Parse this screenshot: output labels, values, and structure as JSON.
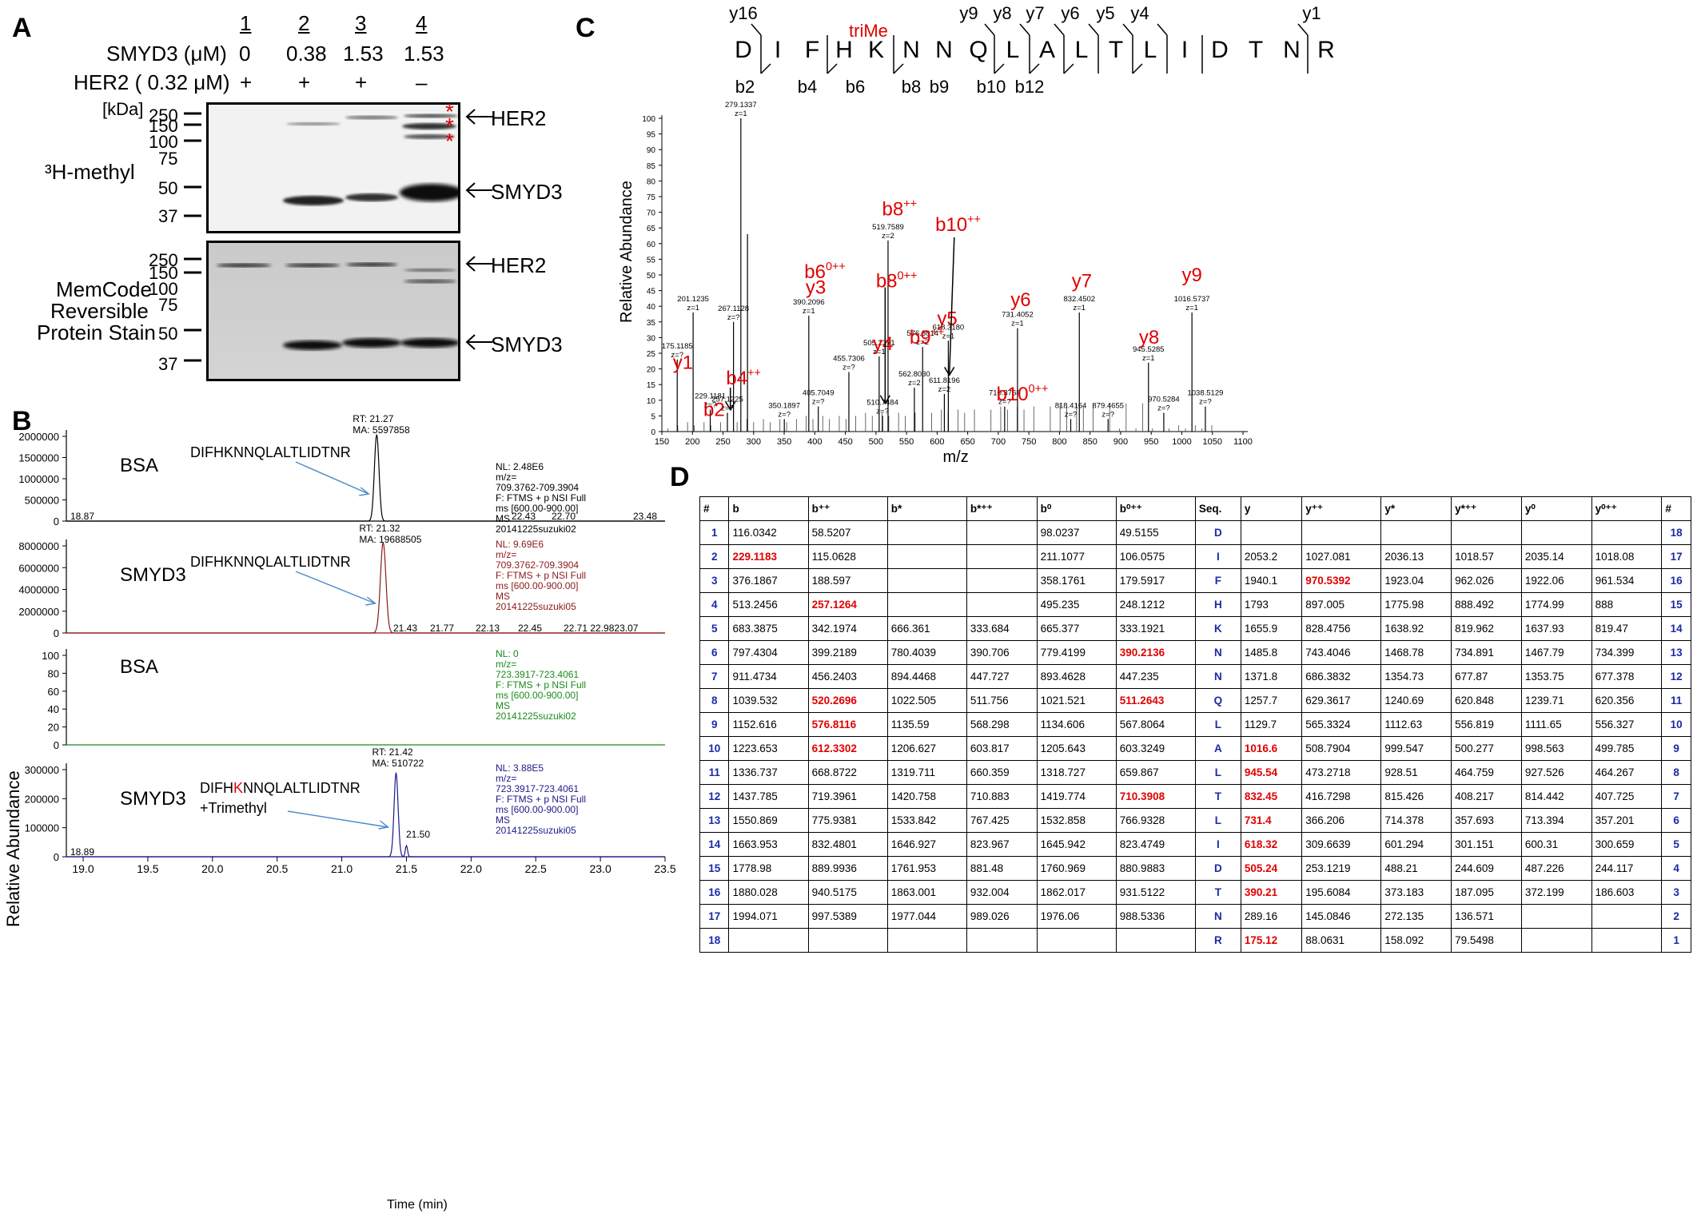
{
  "panelA": {
    "letter": "A",
    "lanes": [
      "1",
      "2",
      "3",
      "4"
    ],
    "smyd3_label": "SMYD3 (μM)",
    "smyd3_values": [
      "0",
      "0.38",
      "1.53",
      "1.53"
    ],
    "her2_label": "HER2 ( 0.32 μM)",
    "her2_values": [
      "+",
      "+",
      "+",
      "–"
    ],
    "kda_label": "[kDa]",
    "top_markers": [
      "250",
      "150",
      "100",
      "75",
      "50",
      "37"
    ],
    "bottom_markers": [
      "250",
      "150",
      "100",
      "75",
      "50",
      "37"
    ],
    "top_side_label": "³H-methyl",
    "bottom_side_label": [
      "MemCode",
      "Reversible",
      "Protein Stain"
    ],
    "her2_arrow": "HER2",
    "smyd3_arrow": "SMYD3",
    "asterisk": "*"
  },
  "panelB": {
    "letter": "B",
    "ylabel": "Relative Abundance",
    "xlabel": "Time (min)",
    "x_ticks": [
      "19.0",
      "19.5",
      "20.0",
      "20.5",
      "21.0",
      "21.5",
      "22.0",
      "22.5",
      "23.0",
      "23.5"
    ],
    "traces": [
      {
        "sample": "BSA",
        "peptide": "DIFHKNNQLALTLIDTNR",
        "rt": "RT: 21.27",
        "ma": "MA: 5597858",
        "info": [
          "NL: 2.48E6",
          "m/z=",
          "709.3762-709.3904",
          "F: FTMS + p NSI Full",
          "ms [600.00-900.00]",
          "MS",
          "20141225suzuki02"
        ],
        "yticks": [
          "2000000",
          "1500000",
          "1000000",
          "500000",
          "0"
        ],
        "annotations": [
          "18.87",
          "22.43",
          "22.70",
          "23.48"
        ],
        "color": "#000000"
      },
      {
        "sample": "SMYD3",
        "peptide": "DIFHKNNQLALTLIDTNR",
        "rt": "RT: 21.32",
        "ma": "MA: 19688505",
        "info": [
          "NL: 9.69E6",
          "m/z=",
          "709.3762-709.3904",
          "F: FTMS + p NSI Full",
          "ms [600.00-900.00]",
          "MS",
          "20141225suzuki05"
        ],
        "yticks": [
          "8000000",
          "6000000",
          "4000000",
          "2000000",
          "0"
        ],
        "annotations": [
          "21.43",
          "21.77",
          "22.13",
          "22.45",
          "22.71 22.9823.07"
        ],
        "color": "#8b1a1a"
      },
      {
        "sample": "BSA",
        "peptide": "",
        "rt": "",
        "ma": "",
        "info": [
          "NL: 0",
          "m/z=",
          "723.3917-723.4061",
          "F: FTMS + p NSI Full",
          "ms [600.00-900.00]",
          "MS",
          "20141225suzuki02"
        ],
        "yticks": [
          "100",
          "80",
          "60",
          "40",
          "20",
          "0"
        ],
        "annotations": [],
        "color": "#1a8a1a"
      },
      {
        "sample": "SMYD3",
        "peptide_pre": "DIFH",
        "peptide_k": "K",
        "peptide_post": "NNQLALTLIDTNR",
        "peptide_mod": "+Trimethyl",
        "rt": "RT: 21.42",
        "ma": "MA: 510722",
        "info": [
          "NL: 3.88E5",
          "m/z=",
          "723.3917-723.4061",
          "F: FTMS + p NSI Full",
          "ms [600.00-900.00]",
          "MS",
          "20141225suzuki05"
        ],
        "yticks": [
          "300000",
          "200000",
          "100000",
          "0"
        ],
        "annotations": [
          "18.89",
          "21.50"
        ],
        "color": "#1a1a8a"
      }
    ]
  },
  "panelC": {
    "letter": "C",
    "sequence": [
      "D",
      "I",
      "F",
      "H",
      "K",
      "N",
      "N",
      "Q",
      "L",
      "A",
      "L",
      "T",
      "L",
      "I",
      "D",
      "T",
      "N",
      "R"
    ],
    "mod_label": "triMe",
    "y_top": [
      "y16",
      "y9",
      "y8",
      "y7",
      "y6",
      "y5",
      "y4",
      "y1"
    ],
    "b_bottom": [
      "b2",
      "b4",
      "b6",
      "b8",
      "b9",
      "b10",
      "b12"
    ],
    "ylabel": "Relative Abundance",
    "xlabel": "m/z",
    "x_ticks": [
      "150",
      "200",
      "250",
      "300",
      "350",
      "400",
      "450",
      "500",
      "550",
      "600",
      "650",
      "700",
      "750",
      "800",
      "850",
      "900",
      "950",
      "1000",
      "1050",
      "1100"
    ],
    "y_ticks": [
      "0",
      "5",
      "10",
      "15",
      "20",
      "25",
      "30",
      "35",
      "40",
      "45",
      "50",
      "55",
      "60",
      "65",
      "70",
      "75",
      "80",
      "85",
      "90",
      "95",
      "100"
    ],
    "chart_data": {
      "type": "bar",
      "xlabel": "m/z",
      "ylabel": "Relative Abundance",
      "xlim": [
        150,
        1100
      ],
      "ylim": [
        0,
        100
      ],
      "peaks": [
        {
          "mz": 175.1185,
          "intensity": 23,
          "label": "175.1185",
          "z": "z=?",
          "ion": "y1"
        },
        {
          "mz": 201.1235,
          "intensity": 38,
          "label": "201.1235",
          "z": "z=1",
          "ion": ""
        },
        {
          "mz": 229.1181,
          "intensity": 7,
          "label": "229.1181",
          "z": "z=?",
          "ion": "b2"
        },
        {
          "mz": 257.1225,
          "intensity": 6,
          "label": "257.1225",
          "z": "z=?",
          "ion": "b4++"
        },
        {
          "mz": 267.1128,
          "intensity": 35,
          "label": "267.1128",
          "z": "z=?",
          "ion": ""
        },
        {
          "mz": 279.1337,
          "intensity": 100,
          "label": "279.1337",
          "z": "z=1",
          "ion": ""
        },
        {
          "mz": 290.0,
          "intensity": 63,
          "label": "",
          "z": "",
          "ion": ""
        },
        {
          "mz": 350.1897,
          "intensity": 4,
          "label": "350.1897",
          "z": "z=?",
          "ion": ""
        },
        {
          "mz": 390.2096,
          "intensity": 37,
          "label": "390.2096",
          "z": "z=1",
          "ion": "y3"
        },
        {
          "mz": 405.7049,
          "intensity": 8,
          "label": "405.7049",
          "z": "z=?",
          "ion": ""
        },
        {
          "mz": 455.7306,
          "intensity": 19,
          "label": "455.7306",
          "z": "z=?",
          "ion": ""
        },
        {
          "mz": 505.2371,
          "intensity": 24,
          "label": "505.2371",
          "z": "z=1",
          "ion": "y4"
        },
        {
          "mz": 510.7484,
          "intensity": 5,
          "label": "510.7484",
          "z": "z=?",
          "ion": "b8⁰⁺⁺"
        },
        {
          "mz": 519.7589,
          "intensity": 61,
          "label": "519.7589",
          "z": "z=2",
          "ion": "b8++"
        },
        {
          "mz": 562.803,
          "intensity": 14,
          "label": "562.8030",
          "z": "z=2",
          "ion": ""
        },
        {
          "mz": 576.3014,
          "intensity": 27,
          "label": "576.3014",
          "z": "z=2",
          "ion": "b9++"
        },
        {
          "mz": 611.8196,
          "intensity": 12,
          "label": "611.8196",
          "z": "z=2",
          "ion": "b10++"
        },
        {
          "mz": 618.318,
          "intensity": 29,
          "label": "618.3180",
          "z": "z=1",
          "ion": "y5"
        },
        {
          "mz": 710.3768,
          "intensity": 8,
          "label": "710.3768",
          "z": "z=?",
          "ion": "b10⁰⁺⁺"
        },
        {
          "mz": 731.4052,
          "intensity": 33,
          "label": "731.4052",
          "z": "z=1",
          "ion": "y6"
        },
        {
          "mz": 818.4164,
          "intensity": 4,
          "label": "818.4164",
          "z": "z=?",
          "ion": ""
        },
        {
          "mz": 832.4502,
          "intensity": 38,
          "label": "832.4502",
          "z": "z=1",
          "ion": "y7"
        },
        {
          "mz": 879.4655,
          "intensity": 4,
          "label": "879.4655",
          "z": "z=?",
          "ion": ""
        },
        {
          "mz": 945.5285,
          "intensity": 22,
          "label": "945.5285",
          "z": "z=1",
          "ion": "y8"
        },
        {
          "mz": 970.5284,
          "intensity": 6,
          "label": "970.5284",
          "z": "z=?",
          "ion": ""
        },
        {
          "mz": 1016.5737,
          "intensity": 38,
          "label": "1016.5737",
          "z": "z=1",
          "ion": "y9"
        },
        {
          "mz": 1038.5129,
          "intensity": 8,
          "label": "1038.5129",
          "z": "z=?",
          "ion": ""
        }
      ]
    },
    "ion_labels": {
      "y1": "y1",
      "b2": "b2",
      "b4": "b4",
      "b6": "b6",
      "y3": "y3",
      "y4": "y4",
      "b8a": "b8",
      "b8b": "b8",
      "b9": "b9",
      "b10a": "b10",
      "b10b": "b10",
      "y5": "y5",
      "y6": "y6",
      "y7": "y7",
      "y8": "y8",
      "y9": "y9",
      "pp": "++",
      "zpp": "0++"
    }
  },
  "panelD": {
    "letter": "D",
    "headers": [
      "#",
      "b",
      "b⁺⁺",
      "b*",
      "b*⁺⁺",
      "b⁰",
      "b⁰⁺⁺",
      "Seq.",
      "y",
      "y⁺⁺",
      "y*",
      "y*⁺⁺",
      "y⁰",
      "y⁰⁺⁺",
      "#"
    ],
    "rows": [
      [
        "1",
        "116.0342",
        "58.5207",
        "",
        "",
        "98.0237",
        "49.5155",
        "D",
        "",
        "",
        "",
        "",
        "",
        "",
        "18"
      ],
      [
        "2",
        "229.1183",
        "115.0628",
        "",
        "",
        "211.1077",
        "106.0575",
        "I",
        "2053.2",
        "1027.081",
        "2036.13",
        "1018.57",
        "2035.14",
        "1018.08",
        "17"
      ],
      [
        "3",
        "376.1867",
        "188.597",
        "",
        "",
        "358.1761",
        "179.5917",
        "F",
        "1940.1",
        "970.5392",
        "1923.04",
        "962.026",
        "1922.06",
        "961.534",
        "16"
      ],
      [
        "4",
        "513.2456",
        "257.1264",
        "",
        "",
        "495.235",
        "248.1212",
        "H",
        "1793",
        "897.005",
        "1775.98",
        "888.492",
        "1774.99",
        "888",
        "15"
      ],
      [
        "5",
        "683.3875",
        "342.1974",
        "666.361",
        "333.684",
        "665.377",
        "333.1921",
        "K",
        "1655.9",
        "828.4756",
        "1638.92",
        "819.962",
        "1637.93",
        "819.47",
        "14"
      ],
      [
        "6",
        "797.4304",
        "399.2189",
        "780.4039",
        "390.706",
        "779.4199",
        "390.2136",
        "N",
        "1485.8",
        "743.4046",
        "1468.78",
        "734.891",
        "1467.79",
        "734.399",
        "13"
      ],
      [
        "7",
        "911.4734",
        "456.2403",
        "894.4468",
        "447.727",
        "893.4628",
        "447.235",
        "N",
        "1371.8",
        "686.3832",
        "1354.73",
        "677.87",
        "1353.75",
        "677.378",
        "12"
      ],
      [
        "8",
        "1039.532",
        "520.2696",
        "1022.505",
        "511.756",
        "1021.521",
        "511.2643",
        "Q",
        "1257.7",
        "629.3617",
        "1240.69",
        "620.848",
        "1239.71",
        "620.356",
        "11"
      ],
      [
        "9",
        "1152.616",
        "576.8116",
        "1135.59",
        "568.298",
        "1134.606",
        "567.8064",
        "L",
        "1129.7",
        "565.3324",
        "1112.63",
        "556.819",
        "1111.65",
        "556.327",
        "10"
      ],
      [
        "10",
        "1223.653",
        "612.3302",
        "1206.627",
        "603.817",
        "1205.643",
        "603.3249",
        "A",
        "1016.6",
        "508.7904",
        "999.547",
        "500.277",
        "998.563",
        "499.785",
        "9"
      ],
      [
        "11",
        "1336.737",
        "668.8722",
        "1319.711",
        "660.359",
        "1318.727",
        "659.867",
        "L",
        "945.54",
        "473.2718",
        "928.51",
        "464.759",
        "927.526",
        "464.267",
        "8"
      ],
      [
        "12",
        "1437.785",
        "719.3961",
        "1420.758",
        "710.883",
        "1419.774",
        "710.3908",
        "T",
        "832.45",
        "416.7298",
        "815.426",
        "408.217",
        "814.442",
        "407.725",
        "7"
      ],
      [
        "13",
        "1550.869",
        "775.9381",
        "1533.842",
        "767.425",
        "1532.858",
        "766.9328",
        "L",
        "731.4",
        "366.206",
        "714.378",
        "357.693",
        "713.394",
        "357.201",
        "6"
      ],
      [
        "14",
        "1663.953",
        "832.4801",
        "1646.927",
        "823.967",
        "1645.942",
        "823.4749",
        "I",
        "618.32",
        "309.6639",
        "601.294",
        "301.151",
        "600.31",
        "300.659",
        "5"
      ],
      [
        "15",
        "1778.98",
        "889.9936",
        "1761.953",
        "881.48",
        "1760.969",
        "880.9883",
        "D",
        "505.24",
        "253.1219",
        "488.21",
        "244.609",
        "487.226",
        "244.117",
        "4"
      ],
      [
        "16",
        "1880.028",
        "940.5175",
        "1863.001",
        "932.004",
        "1862.017",
        "931.5122",
        "T",
        "390.21",
        "195.6084",
        "373.183",
        "187.095",
        "372.199",
        "186.603",
        "3"
      ],
      [
        "17",
        "1994.071",
        "997.5389",
        "1977.044",
        "989.026",
        "1976.06",
        "988.5336",
        "N",
        "289.16",
        "145.0846",
        "272.135",
        "136.571",
        "",
        "",
        "2"
      ],
      [
        "18",
        "",
        "",
        "",
        "",
        "",
        "",
        "R",
        "175.12",
        "88.0631",
        "158.092",
        "79.5498",
        "",
        "",
        "1"
      ]
    ],
    "highlight": [
      [
        2,
        1
      ],
      [
        3,
        9
      ],
      [
        4,
        2
      ],
      [
        6,
        6
      ],
      [
        8,
        2
      ],
      [
        8,
        6
      ],
      [
        9,
        2
      ],
      [
        10,
        2
      ],
      [
        10,
        8
      ],
      [
        11,
        8
      ],
      [
        12,
        6
      ],
      [
        12,
        8
      ],
      [
        13,
        8
      ],
      [
        14,
        8
      ],
      [
        15,
        8
      ],
      [
        16,
        8
      ],
      [
        18,
        8
      ]
    ]
  }
}
